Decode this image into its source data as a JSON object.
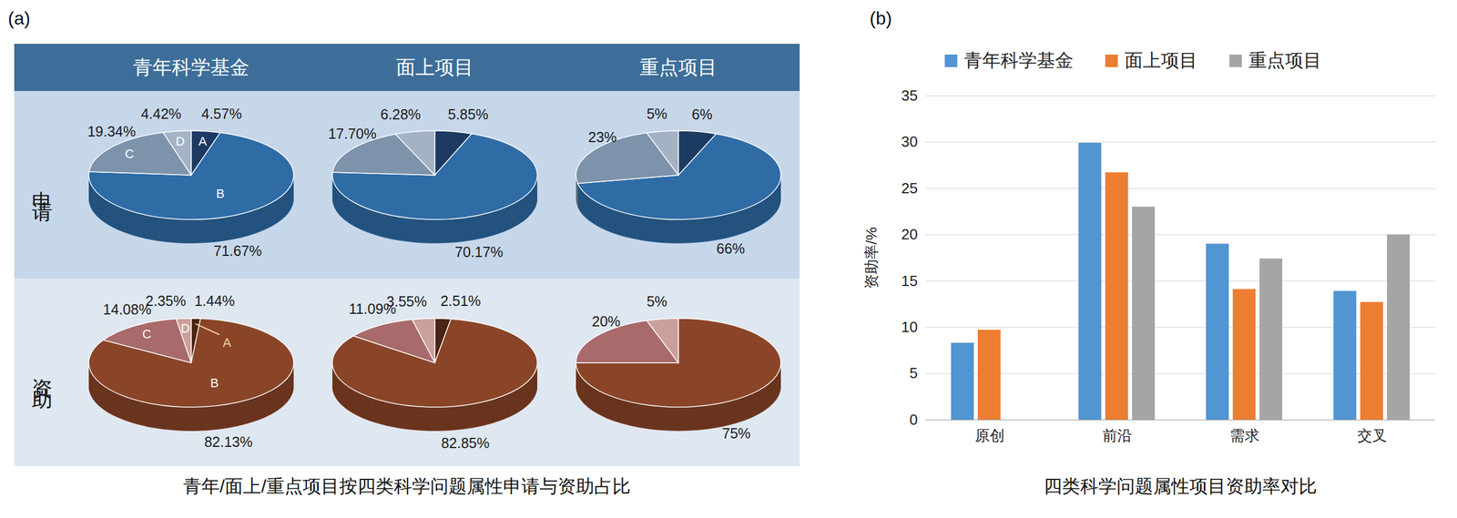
{
  "chart_data": [
    {
      "type": "pie",
      "panel": "(a)",
      "title": "青年/面上/重点项目按四类科学问题属性申请与资助占比",
      "columns": [
        "青年科学基金",
        "面上项目",
        "重点项目"
      ],
      "rows": [
        "申请",
        "资助"
      ],
      "data_labels": true,
      "pies": [
        {
          "column": "青年科学基金",
          "row": "申请",
          "categories": [
            "A",
            "B",
            "C",
            "D"
          ],
          "values": [
            4.57,
            71.67,
            19.34,
            4.42
          ],
          "value_labels": [
            "4.57%",
            "71.67%",
            "19.34%",
            "4.42%"
          ],
          "colors": [
            "#1d3a63",
            "#2f6ca6",
            "#7d93ab",
            "#a3b3c5"
          ]
        },
        {
          "column": "面上项目",
          "row": "申请",
          "categories": [
            null,
            null,
            null,
            null
          ],
          "values": [
            5.85,
            70.17,
            17.7,
            6.28
          ],
          "value_labels": [
            "5.85%",
            "70.17%",
            "17.70%",
            "6.28%"
          ],
          "colors": [
            "#1d3a63",
            "#2f6ca6",
            "#7d93ab",
            "#a3b3c5"
          ]
        },
        {
          "column": "重点项目",
          "row": "申请",
          "categories": [
            null,
            null,
            null,
            null
          ],
          "values": [
            6,
            66,
            23,
            5
          ],
          "value_labels": [
            "6%",
            "66%",
            "23%",
            "5%"
          ],
          "colors": [
            "#1d3a63",
            "#2f6ca6",
            "#7d93ab",
            "#a3b3c5"
          ]
        },
        {
          "column": "青年科学基金",
          "row": "资助",
          "categories": [
            "A",
            "B",
            "C",
            "D"
          ],
          "values": [
            1.44,
            82.13,
            14.08,
            2.35
          ],
          "value_labels": [
            "1.44%",
            "82.13%",
            "14.08%",
            "2.35%"
          ],
          "colors": [
            "#4a2414",
            "#8a4528",
            "#a86a6a",
            "#c9a19a"
          ]
        },
        {
          "column": "面上项目",
          "row": "资助",
          "categories": [
            null,
            null,
            null,
            null
          ],
          "values": [
            2.51,
            82.85,
            11.09,
            3.55
          ],
          "value_labels": [
            "2.51%",
            "82.85%",
            "11.09%",
            "3.55%"
          ],
          "colors": [
            "#4a2414",
            "#8a4528",
            "#a86a6a",
            "#c9a19a"
          ]
        },
        {
          "column": "重点项目",
          "row": "资助",
          "categories": [
            null,
            null,
            null,
            null
          ],
          "values": [
            0,
            75,
            20,
            5
          ],
          "value_labels": [
            null,
            "75%",
            "20%",
            "5%"
          ],
          "colors": [
            "#4a2414",
            "#8a4528",
            "#a86a6a",
            "#c9a19a"
          ]
        }
      ]
    },
    {
      "type": "bar",
      "panel": "(b)",
      "title": "四类科学问题属性项目资助率对比",
      "ylabel": "资助率/%",
      "categories": [
        "原创",
        "前沿",
        "需求",
        "交叉"
      ],
      "series": [
        {
          "name": "青年科学基金",
          "color": "#5195d3",
          "values": [
            8.3,
            29.9,
            19.0,
            13.9
          ]
        },
        {
          "name": "面上项目",
          "color": "#ed7d31",
          "values": [
            9.7,
            26.7,
            14.1,
            12.7
          ]
        },
        {
          "name": "重点项目",
          "color": "#a5a5a5",
          "values": [
            null,
            23.0,
            17.4,
            20.0
          ]
        }
      ],
      "ylim": [
        0,
        35
      ],
      "yticks": [
        0,
        5,
        10,
        15,
        20,
        25,
        30,
        35
      ],
      "grid": true,
      "legend": "top"
    }
  ]
}
